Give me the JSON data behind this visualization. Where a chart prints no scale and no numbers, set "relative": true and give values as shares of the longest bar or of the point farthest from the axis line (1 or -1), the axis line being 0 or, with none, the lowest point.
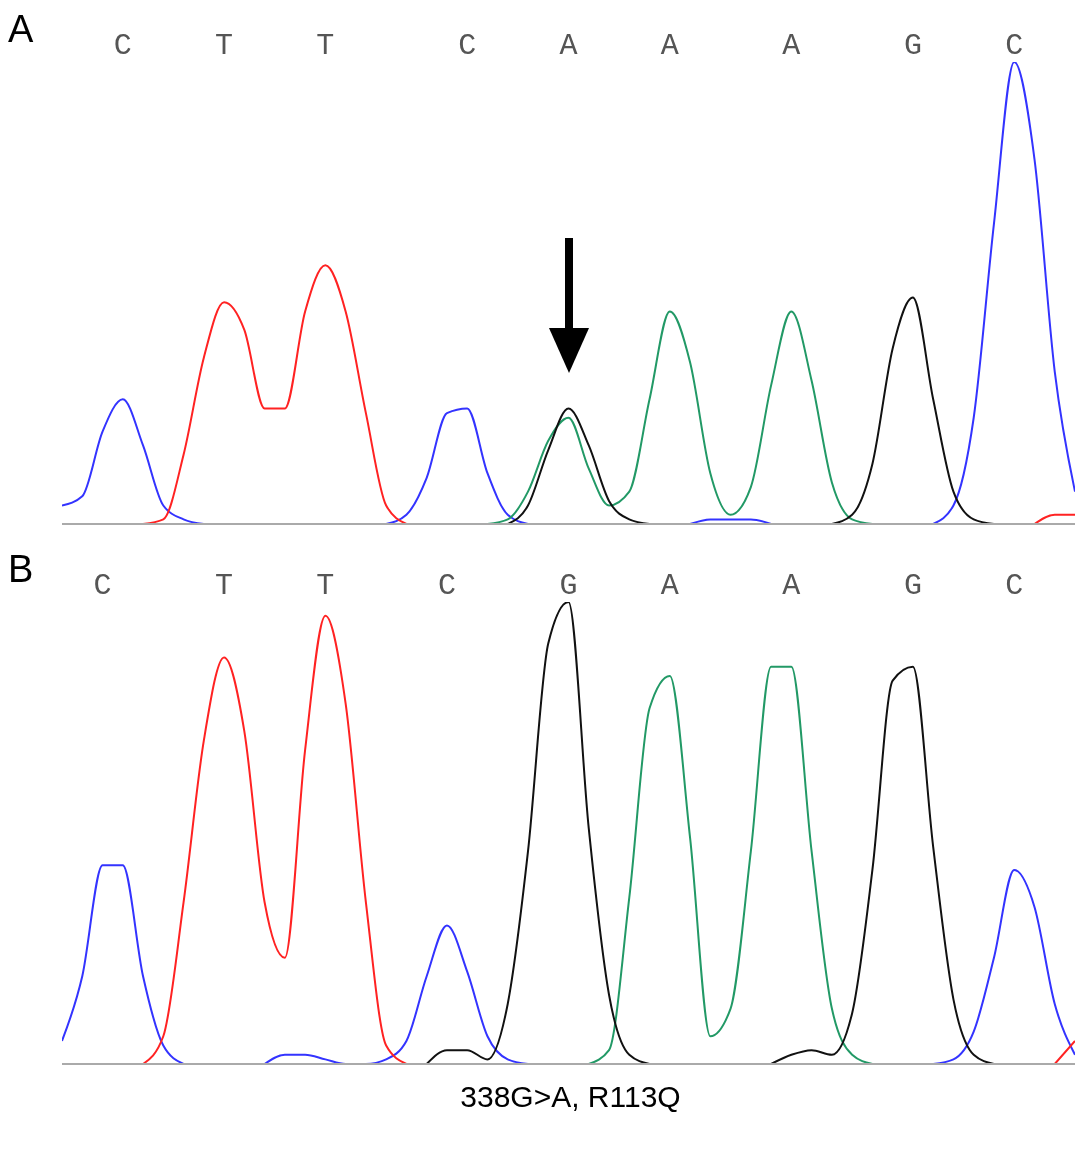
{
  "chart_data": [
    {
      "type": "line",
      "title": "A",
      "relative": true,
      "categories": [
        null,
        null,
        null,
        "C",
        null,
        null,
        null,
        null,
        "T",
        null,
        null,
        null,
        null,
        "T",
        null,
        null,
        null,
        null,
        null,
        null,
        "C",
        null,
        null,
        null,
        null,
        "A",
        null,
        null,
        null,
        null,
        "A",
        null,
        null,
        null,
        null,
        null,
        "A",
        null,
        null,
        null,
        null,
        null,
        "G",
        null,
        null,
        null,
        null,
        "C",
        null,
        null,
        null
      ],
      "series": [
        {
          "color": "#3333ff",
          "values": [
            0.04,
            0.06,
            0.2,
            0.27,
            0.17,
            0.04,
            0.01,
            0,
            null,
            null,
            null,
            null,
            null,
            null,
            null,
            null,
            0,
            0.02,
            0.1,
            0.24,
            0.25,
            0.11,
            0.02,
            0,
            null,
            null,
            null,
            null,
            null,
            null,
            null,
            0,
            0.01,
            0.01,
            0.01,
            0,
            null,
            null,
            null,
            null,
            null,
            null,
            null,
            0,
            0.04,
            0.23,
            0.65,
            1,
            0.79,
            0.33,
            0.07
          ]
        },
        {
          "color": "#ff2222",
          "values": [
            null,
            null,
            null,
            null,
            0,
            0.01,
            0.15,
            0.36,
            0.48,
            0.42,
            0.25,
            0.25,
            0.46,
            0.56,
            0.46,
            0.24,
            0.04,
            0,
            null,
            null,
            null,
            null,
            null,
            null,
            null,
            null,
            null,
            null,
            null,
            null,
            null,
            null,
            null,
            null,
            null,
            null,
            null,
            null,
            null,
            null,
            null,
            null,
            null,
            null,
            null,
            null,
            null,
            null,
            0,
            0.02,
            0.02
          ]
        },
        {
          "color": "#229966",
          "values": [
            null,
            null,
            null,
            null,
            null,
            null,
            null,
            null,
            null,
            null,
            null,
            null,
            null,
            null,
            null,
            null,
            null,
            null,
            null,
            null,
            null,
            0,
            0.01,
            0.07,
            0.18,
            0.23,
            0.12,
            0.04,
            0.07,
            0.27,
            0.46,
            0.35,
            0.11,
            0.02,
            0.08,
            0.3,
            0.46,
            0.31,
            0.09,
            0.01,
            0,
            null,
            null,
            null,
            null,
            null,
            null,
            null,
            null,
            null,
            null
          ]
        },
        {
          "color": "#111111",
          "values": [
            null,
            null,
            null,
            null,
            null,
            null,
            null,
            null,
            null,
            null,
            null,
            null,
            null,
            null,
            null,
            null,
            null,
            null,
            null,
            null,
            null,
            null,
            0,
            0.04,
            0.16,
            0.25,
            0.17,
            0.05,
            0.01,
            0,
            null,
            null,
            null,
            null,
            null,
            null,
            null,
            null,
            0,
            0.02,
            0.13,
            0.38,
            0.49,
            0.27,
            0.07,
            0.01,
            0,
            null,
            null,
            null,
            null
          ]
        }
      ]
    },
    {
      "type": "line",
      "title": "B",
      "relative": true,
      "annotations": [
        "338G>A, R113Q"
      ],
      "categories": [
        null,
        null,
        "C",
        null,
        null,
        null,
        null,
        null,
        "T",
        null,
        null,
        null,
        null,
        "T",
        null,
        null,
        null,
        null,
        null,
        "C",
        null,
        null,
        null,
        null,
        null,
        "G",
        null,
        null,
        null,
        null,
        "A",
        null,
        null,
        null,
        null,
        null,
        "A",
        null,
        null,
        null,
        null,
        null,
        "G",
        null,
        null,
        null,
        null,
        "C",
        null,
        null,
        null
      ],
      "series": [
        {
          "color": "#3333ff",
          "values": [
            0.05,
            0.19,
            0.43,
            0.43,
            0.19,
            0.04,
            0,
            null,
            null,
            null,
            0,
            0.02,
            0.02,
            0.01,
            0,
            0,
            0.01,
            0.05,
            0.19,
            0.3,
            0.2,
            0.06,
            0.01,
            0,
            null,
            null,
            null,
            null,
            null,
            null,
            null,
            null,
            null,
            null,
            null,
            null,
            null,
            null,
            null,
            null,
            null,
            null,
            null,
            0,
            0.01,
            0.07,
            0.23,
            0.42,
            0.34,
            0.13,
            0.02
          ]
        },
        {
          "color": "#ff2222",
          "values": [
            null,
            null,
            null,
            null,
            0,
            0.06,
            0.35,
            0.7,
            0.88,
            0.72,
            0.35,
            0.23,
            0.68,
            0.97,
            0.78,
            0.35,
            0.04,
            0,
            null,
            null,
            null,
            null,
            null,
            null,
            null,
            null,
            null,
            null,
            null,
            null,
            null,
            null,
            null,
            null,
            null,
            null,
            null,
            null,
            null,
            null,
            null,
            null,
            null,
            null,
            null,
            null,
            null,
            null,
            null,
            0,
            0.05
          ]
        },
        {
          "color": "#229966",
          "values": [
            null,
            null,
            null,
            null,
            null,
            null,
            null,
            null,
            null,
            null,
            null,
            null,
            null,
            null,
            null,
            null,
            null,
            null,
            null,
            null,
            null,
            null,
            null,
            null,
            null,
            null,
            0,
            0.03,
            0.36,
            0.77,
            0.84,
            0.49,
            0.06,
            0.12,
            0.46,
            0.86,
            0.86,
            0.46,
            0.12,
            0.02,
            0,
            null,
            null,
            null,
            null,
            null,
            null,
            null,
            null,
            null,
            null
          ]
        },
        {
          "color": "#111111",
          "values": [
            null,
            null,
            null,
            null,
            null,
            null,
            null,
            null,
            null,
            null,
            null,
            null,
            null,
            null,
            null,
            null,
            null,
            null,
            0,
            0.03,
            0.03,
            0.01,
            0.13,
            0.46,
            0.91,
            1,
            0.51,
            0.15,
            0.02,
            0,
            null,
            null,
            null,
            null,
            null,
            0,
            0.02,
            0.03,
            0.02,
            0.11,
            0.42,
            0.83,
            0.86,
            0.47,
            0.14,
            0.02,
            0,
            null,
            null,
            null,
            null
          ]
        }
      ]
    }
  ]
}
